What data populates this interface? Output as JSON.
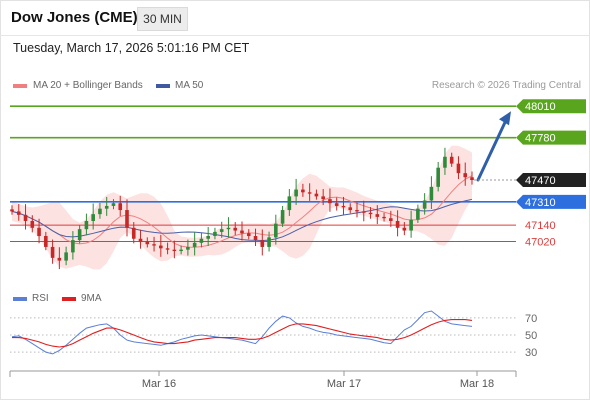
{
  "header": {
    "title": "Dow Jones (CME)",
    "timeframe": "30 MIN",
    "datetime": "Tuesday, March 17, 2026 5:01:16 PM CET"
  },
  "legend": {
    "ma20_label": "MA 20 + Bollinger Bands",
    "ma50_label": "MA 50",
    "credit": "Research © 2026 Trading Central",
    "rsi_label": "RSI",
    "rsi_ma_label": "9MA"
  },
  "colors": {
    "resistance": "#5aa51e",
    "support": "#e03a3a",
    "pivot": "#2e6fe0",
    "last_price": "#222222",
    "bollinger_fill": "#fde2e2",
    "ma20": "#f08080",
    "ma50": "#4a5fa8",
    "candle_up": "#2e8b3a",
    "candle_down": "#c62828",
    "rsi": "#5b7fd6",
    "rsi_ma": "#e02020",
    "forecast_arrow": "#2e5fa8"
  },
  "chart_data": {
    "type": "line",
    "instrument": "Dow Jones (CME)",
    "interval": "30 MIN",
    "x_ticks": [
      "Mar 16",
      "Mar 17",
      "Mar 18"
    ],
    "price_levels": [
      {
        "label": "48010",
        "value": 48010,
        "kind": "resistance"
      },
      {
        "label": "47780",
        "value": 47780,
        "kind": "resistance"
      },
      {
        "label": "47470",
        "value": 47470,
        "kind": "last"
      },
      {
        "label": "47310",
        "value": 47310,
        "kind": "pivot"
      },
      {
        "label": "47140",
        "value": 47140,
        "kind": "support"
      },
      {
        "label": "47020",
        "value": 47020,
        "kind": "support"
      }
    ],
    "price_series": [
      47240,
      47215,
      47170,
      47120,
      47060,
      46980,
      46900,
      46880,
      46940,
      47030,
      47110,
      47170,
      47220,
      47260,
      47280,
      47300,
      47250,
      47120,
      47040,
      47020,
      47000,
      46990,
      46970,
      46960,
      46950,
      46960,
      46980,
      47010,
      47040,
      47060,
      47090,
      47110,
      47120,
      47100,
      47080,
      47060,
      47030,
      46980,
      47050,
      47150,
      47250,
      47350,
      47400,
      47380,
      47370,
      47350,
      47330,
      47300,
      47280,
      47270,
      47250,
      47240,
      47230,
      47220,
      47200,
      47190,
      47170,
      47120,
      47100,
      47180,
      47260,
      47320,
      47420,
      47560,
      47640,
      47590,
      47520,
      47490,
      47470
    ],
    "rsi": {
      "levels": [
        70,
        50,
        30
      ],
      "ylim": [
        15,
        85
      ],
      "values": [
        48,
        49,
        45,
        40,
        35,
        30,
        28,
        32,
        38,
        45,
        52,
        58,
        60,
        62,
        63,
        58,
        50,
        44,
        42,
        41,
        40,
        39,
        38,
        40,
        42,
        45,
        47,
        49,
        50,
        49,
        48,
        47,
        46,
        45,
        44,
        42,
        40,
        48,
        58,
        66,
        72,
        70,
        64,
        60,
        58,
        55,
        53,
        52,
        50,
        49,
        48,
        47,
        46,
        45,
        43,
        41,
        40,
        48,
        56,
        60,
        68,
        76,
        78,
        72,
        66,
        63,
        62,
        61,
        60
      ],
      "ma9": [
        47,
        47,
        46,
        44,
        42,
        39,
        37,
        36,
        37,
        40,
        44,
        48,
        52,
        55,
        58,
        58,
        56,
        53,
        50,
        47,
        44,
        42,
        41,
        40,
        40,
        41,
        42,
        44,
        45,
        46,
        47,
        47,
        47,
        47,
        46,
        45,
        45,
        46,
        49,
        53,
        57,
        61,
        63,
        63,
        62,
        61,
        59,
        57,
        55,
        53,
        51,
        50,
        49,
        48,
        47,
        45,
        44,
        45,
        47,
        50,
        54,
        58,
        62,
        65,
        67,
        68,
        68,
        68,
        67
      ]
    }
  }
}
